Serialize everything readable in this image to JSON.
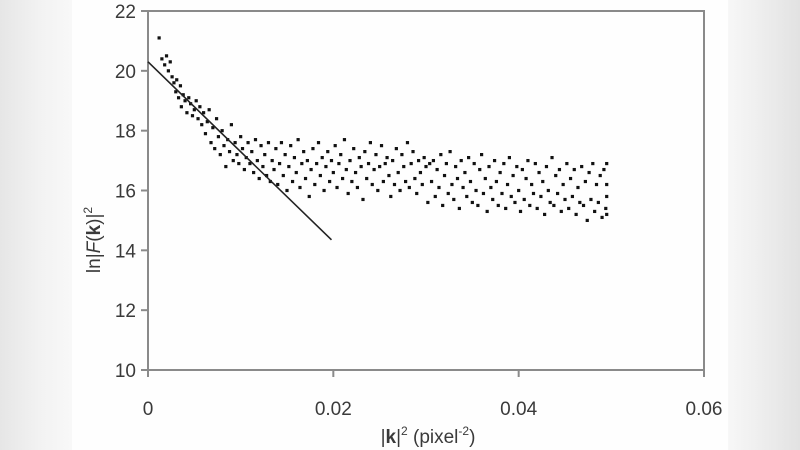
{
  "chart_data": {
    "type": "scatter",
    "title": "",
    "xlabel": "|k|² (pixel⁻²)",
    "ylabel": "ln|F(k)|²",
    "xlabel_parts": {
      "k": "k",
      "sup": "2",
      "unit_open": " (pixel",
      "unit_sup": "-2",
      "unit_close": ")"
    },
    "ylabel_parts": {
      "ln": "ln",
      "F": "F",
      "k": "k",
      "sup": "2"
    },
    "xlim": [
      0,
      0.06
    ],
    "ylim": [
      10,
      22
    ],
    "x_ticks": [
      "0",
      "0.02",
      "0.04",
      "0.06"
    ],
    "x_tick_values": [
      0,
      0.02,
      0.04,
      0.06
    ],
    "y_ticks": [
      "10",
      "12",
      "14",
      "16",
      "18",
      "20",
      "22"
    ],
    "y_tick_values": [
      10,
      12,
      14,
      16,
      18,
      20,
      22
    ],
    "grid": false,
    "legend": null,
    "series": [
      {
        "name": "data",
        "marker": "square-dot",
        "color": "#111111",
        "points": [
          [
            0.0012,
            21.1
          ],
          [
            0.0015,
            20.4
          ],
          [
            0.0018,
            20.2
          ],
          [
            0.002,
            20.5
          ],
          [
            0.0022,
            20.0
          ],
          [
            0.0024,
            20.3
          ],
          [
            0.0026,
            19.8
          ],
          [
            0.0028,
            19.6
          ],
          [
            0.003,
            19.3
          ],
          [
            0.0031,
            19.7
          ],
          [
            0.0033,
            19.1
          ],
          [
            0.0035,
            19.5
          ],
          [
            0.0036,
            18.8
          ],
          [
            0.0038,
            19.2
          ],
          [
            0.004,
            19.0
          ],
          [
            0.0042,
            18.6
          ],
          [
            0.0044,
            19.1
          ],
          [
            0.0046,
            18.9
          ],
          [
            0.0048,
            18.5
          ],
          [
            0.005,
            18.7
          ],
          [
            0.0052,
            19.0
          ],
          [
            0.0054,
            18.4
          ],
          [
            0.0056,
            18.8
          ],
          [
            0.0058,
            18.2
          ],
          [
            0.006,
            18.6
          ],
          [
            0.0062,
            17.9
          ],
          [
            0.0064,
            18.3
          ],
          [
            0.0066,
            18.7
          ],
          [
            0.0068,
            17.6
          ],
          [
            0.007,
            18.1
          ],
          [
            0.0072,
            17.4
          ],
          [
            0.0074,
            18.4
          ],
          [
            0.0076,
            17.8
          ],
          [
            0.0078,
            17.2
          ],
          [
            0.008,
            18.0
          ],
          [
            0.0082,
            17.5
          ],
          [
            0.0084,
            16.8
          ],
          [
            0.0086,
            17.7
          ],
          [
            0.0088,
            17.3
          ],
          [
            0.009,
            18.2
          ],
          [
            0.0092,
            17.0
          ],
          [
            0.0094,
            17.6
          ],
          [
            0.0096,
            17.2
          ],
          [
            0.0098,
            16.9
          ],
          [
            0.01,
            17.8
          ],
          [
            0.0102,
            17.4
          ],
          [
            0.0104,
            16.7
          ],
          [
            0.0106,
            17.1
          ],
          [
            0.0108,
            17.6
          ],
          [
            0.011,
            16.9
          ],
          [
            0.0112,
            17.3
          ],
          [
            0.0114,
            16.6
          ],
          [
            0.0116,
            17.7
          ],
          [
            0.0118,
            17.0
          ],
          [
            0.012,
            16.4
          ],
          [
            0.0122,
            17.5
          ],
          [
            0.0124,
            16.8
          ],
          [
            0.0126,
            17.2
          ],
          [
            0.0128,
            16.5
          ],
          [
            0.013,
            17.6
          ],
          [
            0.0132,
            16.3
          ],
          [
            0.0134,
            17.0
          ],
          [
            0.0136,
            16.7
          ],
          [
            0.0138,
            17.4
          ],
          [
            0.014,
            16.2
          ],
          [
            0.0142,
            16.9
          ],
          [
            0.0144,
            17.6
          ],
          [
            0.0146,
            16.5
          ],
          [
            0.0148,
            17.2
          ],
          [
            0.015,
            16.0
          ],
          [
            0.0152,
            16.8
          ],
          [
            0.0154,
            17.5
          ],
          [
            0.0156,
            16.3
          ],
          [
            0.0158,
            17.1
          ],
          [
            0.016,
            16.6
          ],
          [
            0.0162,
            17.7
          ],
          [
            0.0164,
            16.1
          ],
          [
            0.0166,
            16.9
          ],
          [
            0.0168,
            17.3
          ],
          [
            0.017,
            16.4
          ],
          [
            0.0172,
            17.0
          ],
          [
            0.0174,
            15.8
          ],
          [
            0.0176,
            16.7
          ],
          [
            0.0178,
            17.4
          ],
          [
            0.018,
            16.2
          ],
          [
            0.0182,
            16.9
          ],
          [
            0.0184,
            17.6
          ],
          [
            0.0186,
            16.5
          ],
          [
            0.0188,
            17.1
          ],
          [
            0.019,
            16.0
          ],
          [
            0.0192,
            16.8
          ],
          [
            0.0194,
            17.3
          ],
          [
            0.0196,
            16.3
          ],
          [
            0.0198,
            17.0
          ],
          [
            0.02,
            16.6
          ],
          [
            0.0202,
            17.5
          ],
          [
            0.0204,
            16.1
          ],
          [
            0.0206,
            16.9
          ],
          [
            0.0208,
            17.2
          ],
          [
            0.021,
            16.4
          ],
          [
            0.0212,
            17.7
          ],
          [
            0.0214,
            16.7
          ],
          [
            0.0216,
            15.9
          ],
          [
            0.0218,
            17.0
          ],
          [
            0.022,
            16.3
          ],
          [
            0.0222,
            17.4
          ],
          [
            0.0224,
            16.6
          ],
          [
            0.0226,
            16.1
          ],
          [
            0.0228,
            17.1
          ],
          [
            0.023,
            16.8
          ],
          [
            0.0232,
            15.7
          ],
          [
            0.0234,
            17.3
          ],
          [
            0.0236,
            16.4
          ],
          [
            0.0238,
            16.9
          ],
          [
            0.024,
            17.6
          ],
          [
            0.0242,
            16.2
          ],
          [
            0.0244,
            16.7
          ],
          [
            0.0246,
            17.2
          ],
          [
            0.0248,
            16.0
          ],
          [
            0.025,
            16.8
          ],
          [
            0.0252,
            17.5
          ],
          [
            0.0254,
            16.3
          ],
          [
            0.0256,
            16.9
          ],
          [
            0.0258,
            17.1
          ],
          [
            0.026,
            16.5
          ],
          [
            0.0262,
            15.8
          ],
          [
            0.0264,
            17.0
          ],
          [
            0.0266,
            16.2
          ],
          [
            0.0268,
            17.4
          ],
          [
            0.027,
            16.6
          ],
          [
            0.0272,
            16.0
          ],
          [
            0.0274,
            17.2
          ],
          [
            0.0276,
            16.8
          ],
          [
            0.0278,
            16.3
          ],
          [
            0.028,
            17.6
          ],
          [
            0.0282,
            16.1
          ],
          [
            0.0284,
            16.9
          ],
          [
            0.0286,
            17.3
          ],
          [
            0.0288,
            16.4
          ],
          [
            0.029,
            15.9
          ],
          [
            0.0292,
            17.0
          ],
          [
            0.0294,
            16.6
          ],
          [
            0.0296,
            16.2
          ],
          [
            0.0298,
            17.1
          ],
          [
            0.03,
            16.8
          ],
          [
            0.0302,
            15.6
          ],
          [
            0.0304,
            16.9
          ],
          [
            0.0306,
            16.3
          ],
          [
            0.0308,
            17.0
          ],
          [
            0.031,
            15.8
          ],
          [
            0.0312,
            16.7
          ],
          [
            0.0314,
            16.1
          ],
          [
            0.0316,
            17.2
          ],
          [
            0.0318,
            15.5
          ],
          [
            0.032,
            16.5
          ],
          [
            0.0322,
            16.9
          ],
          [
            0.0324,
            15.9
          ],
          [
            0.0326,
            17.3
          ],
          [
            0.0328,
            16.2
          ],
          [
            0.033,
            15.7
          ],
          [
            0.0332,
            16.8
          ],
          [
            0.0334,
            16.4
          ],
          [
            0.0336,
            15.4
          ],
          [
            0.0338,
            17.0
          ],
          [
            0.034,
            16.1
          ],
          [
            0.0342,
            16.6
          ],
          [
            0.0344,
            15.8
          ],
          [
            0.0346,
            17.1
          ],
          [
            0.0348,
            16.3
          ],
          [
            0.035,
            15.6
          ],
          [
            0.0352,
            16.9
          ],
          [
            0.0354,
            16.0
          ],
          [
            0.0356,
            15.5
          ],
          [
            0.0358,
            16.7
          ],
          [
            0.036,
            17.2
          ],
          [
            0.0362,
            15.9
          ],
          [
            0.0364,
            16.4
          ],
          [
            0.0366,
            15.3
          ],
          [
            0.0368,
            16.8
          ],
          [
            0.037,
            16.1
          ],
          [
            0.0372,
            15.7
          ],
          [
            0.0374,
            17.0
          ],
          [
            0.0376,
            16.3
          ],
          [
            0.0378,
            15.5
          ],
          [
            0.038,
            16.6
          ],
          [
            0.0382,
            15.9
          ],
          [
            0.0384,
            16.9
          ],
          [
            0.0386,
            15.4
          ],
          [
            0.0388,
            16.2
          ],
          [
            0.039,
            17.1
          ],
          [
            0.0392,
            15.8
          ],
          [
            0.0394,
            16.5
          ],
          [
            0.0396,
            15.6
          ],
          [
            0.0398,
            16.8
          ],
          [
            0.04,
            16.0
          ],
          [
            0.0402,
            15.3
          ],
          [
            0.0404,
            16.7
          ],
          [
            0.0406,
            15.7
          ],
          [
            0.0408,
            16.4
          ],
          [
            0.041,
            17.0
          ],
          [
            0.0412,
            15.5
          ],
          [
            0.0414,
            16.2
          ],
          [
            0.0416,
            15.9
          ],
          [
            0.0418,
            16.9
          ],
          [
            0.042,
            15.4
          ],
          [
            0.0422,
            16.6
          ],
          [
            0.0424,
            15.8
          ],
          [
            0.0426,
            16.3
          ],
          [
            0.0428,
            15.2
          ],
          [
            0.043,
            16.8
          ],
          [
            0.0432,
            16.0
          ],
          [
            0.0434,
            15.6
          ],
          [
            0.0436,
            17.1
          ],
          [
            0.0438,
            15.5
          ],
          [
            0.044,
            16.5
          ],
          [
            0.0442,
            15.9
          ],
          [
            0.0444,
            16.7
          ],
          [
            0.0446,
            15.3
          ],
          [
            0.0448,
            16.2
          ],
          [
            0.045,
            15.7
          ],
          [
            0.0452,
            16.9
          ],
          [
            0.0454,
            15.4
          ],
          [
            0.0456,
            16.4
          ],
          [
            0.0458,
            15.8
          ],
          [
            0.046,
            16.7
          ],
          [
            0.0462,
            15.2
          ],
          [
            0.0464,
            16.1
          ],
          [
            0.0466,
            15.6
          ],
          [
            0.0468,
            16.8
          ],
          [
            0.047,
            15.5
          ],
          [
            0.0472,
            16.3
          ],
          [
            0.0474,
            15.0
          ],
          [
            0.0476,
            16.6
          ],
          [
            0.0478,
            15.7
          ],
          [
            0.048,
            16.9
          ],
          [
            0.0482,
            15.3
          ],
          [
            0.0484,
            16.2
          ],
          [
            0.0486,
            15.6
          ],
          [
            0.0488,
            16.5
          ],
          [
            0.049,
            15.1
          ],
          [
            0.0492,
            16.7
          ],
          [
            0.0494,
            15.4
          ],
          [
            0.0495,
            16.2
          ],
          [
            0.0495,
            15.8
          ],
          [
            0.0495,
            16.9
          ],
          [
            0.0495,
            15.2
          ]
        ]
      },
      {
        "name": "linear fit",
        "type": "line",
        "color": "#222222",
        "points": [
          [
            0.0,
            20.3
          ],
          [
            0.0198,
            14.35
          ]
        ]
      }
    ]
  },
  "colors": {
    "axis": "#8a8a8a",
    "text": "#3a3a3a",
    "marker": "#111111",
    "fit_line": "#222222",
    "panel_bg": "#fefefe"
  }
}
